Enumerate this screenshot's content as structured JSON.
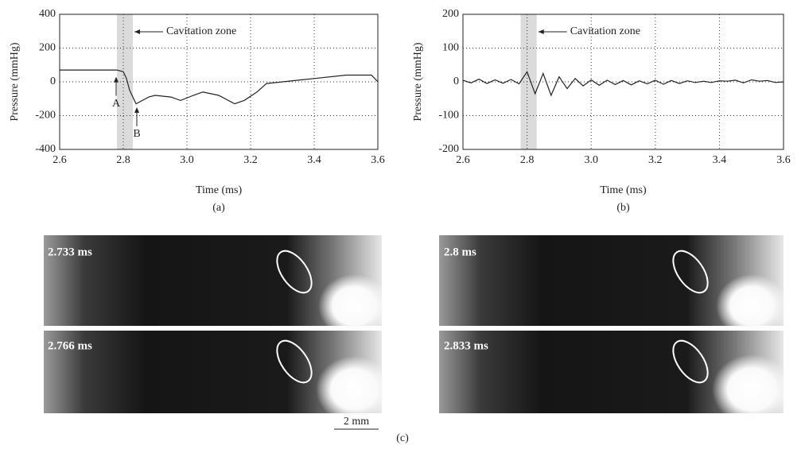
{
  "chart_data": [
    {
      "type": "line",
      "caption": "(a)",
      "x_label": "Time (ms)",
      "y_label": "Pressure (mmHg)",
      "xlim": [
        2.6,
        3.6
      ],
      "ylim": [
        -400,
        400
      ],
      "xticks": [
        2.6,
        2.8,
        {
          "value": 3,
          "label": "3.0"
        },
        3.2,
        3.4,
        3.6
      ],
      "yticks": [
        -400,
        -200,
        0,
        200,
        400
      ],
      "grid": true,
      "cavitation_zone": [
        2.78,
        2.83
      ],
      "annotations": [
        "Cavitation zone",
        "A",
        "B"
      ],
      "series": [
        {
          "color": "#222",
          "x": [
            2.6,
            2.65,
            2.7,
            2.75,
            2.78,
            2.8,
            2.81,
            2.82,
            2.84,
            2.86,
            2.88,
            2.9,
            2.95,
            2.98,
            3.02,
            3.05,
            3.1,
            3.15,
            3.18,
            3.22,
            3.25,
            3.3,
            3.4,
            3.5,
            3.58,
            3.6
          ],
          "values": [
            70,
            70,
            70,
            70,
            70,
            60,
            20,
            -50,
            -130,
            -110,
            -90,
            -80,
            -90,
            -110,
            -80,
            -60,
            -80,
            -130,
            -110,
            -60,
            -10,
            0,
            20,
            40,
            40,
            0
          ]
        }
      ]
    },
    {
      "type": "line",
      "caption": "(b)",
      "x_label": "Time (ms)",
      "y_label": "Pressure (mmHg)",
      "xlim": [
        2.6,
        3.6
      ],
      "ylim": [
        -200,
        200
      ],
      "xticks": [
        2.6,
        2.8,
        {
          "value": 3,
          "label": "3.0"
        },
        3.2,
        3.4,
        3.6
      ],
      "yticks": [
        -200,
        -100,
        0,
        100,
        200
      ],
      "grid": true,
      "cavitation_zone": [
        2.78,
        2.83
      ],
      "annotations": [
        "Cavitation zone"
      ],
      "series": [
        {
          "color": "#222",
          "x": [
            2.6,
            2.625,
            2.65,
            2.675,
            2.7,
            2.725,
            2.75,
            2.775,
            2.8,
            2.825,
            2.85,
            2.875,
            2.9,
            2.925,
            2.95,
            2.975,
            3.0,
            3.025,
            3.05,
            3.075,
            3.1,
            3.125,
            3.15,
            3.175,
            3.2,
            3.225,
            3.25,
            3.275,
            3.3,
            3.325,
            3.35,
            3.375,
            3.4,
            3.425,
            3.45,
            3.475,
            3.5,
            3.525,
            3.55,
            3.575,
            3.6
          ],
          "values": [
            5,
            -3,
            8,
            -5,
            6,
            -4,
            7,
            -6,
            30,
            -35,
            25,
            -40,
            15,
            -20,
            10,
            -12,
            6,
            -10,
            5,
            -8,
            4,
            -9,
            3,
            -6,
            5,
            -7,
            4,
            -5,
            3,
            -2,
            2,
            -2,
            3,
            2,
            5,
            -3,
            6,
            2,
            4,
            -2,
            0
          ]
        }
      ]
    }
  ],
  "images": {
    "caption": "(c)",
    "scale_bar": "2 mm",
    "frames": [
      "2.733 ms",
      "2.8 ms",
      "2.766 ms",
      "2.833 ms"
    ]
  }
}
